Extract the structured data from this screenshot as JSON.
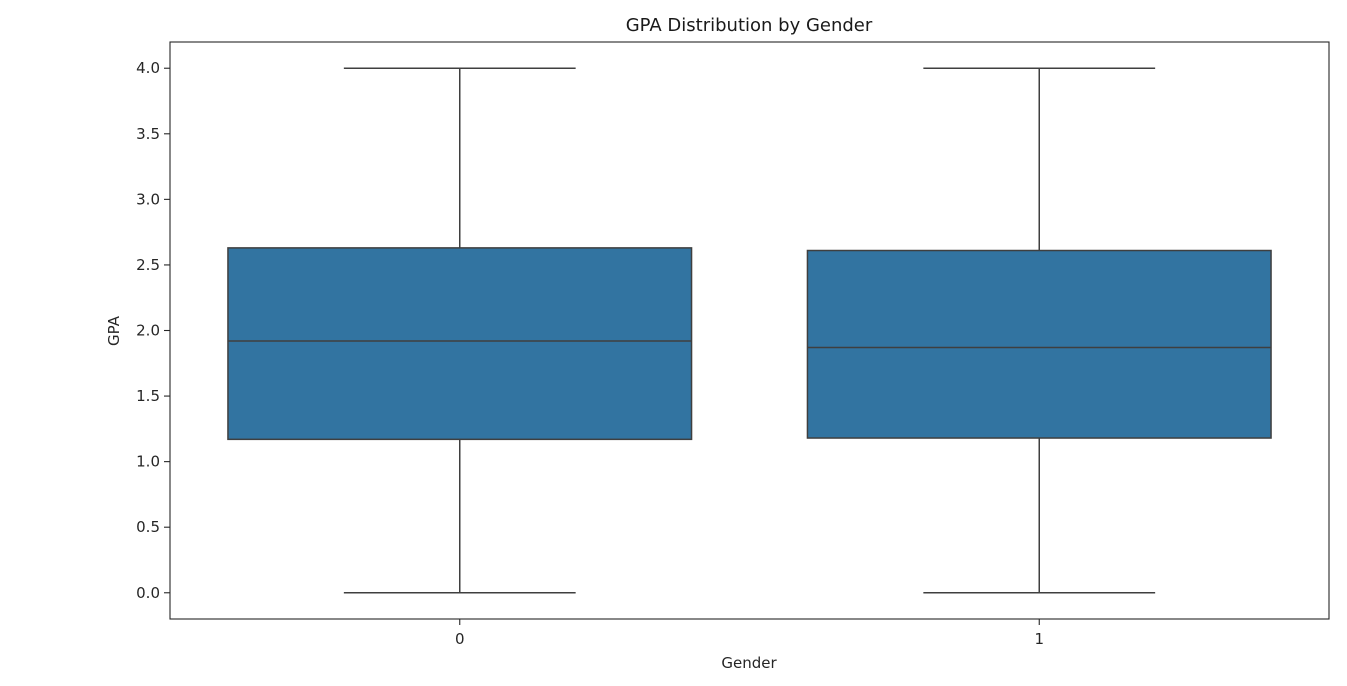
{
  "chart_data": {
    "type": "boxplot",
    "title": "GPA Distribution by Gender",
    "xlabel": "Gender",
    "ylabel": "GPA",
    "categories": [
      "0",
      "1"
    ],
    "ylim": [
      -0.2,
      4.2
    ],
    "yticks": [
      "0.0",
      "0.5",
      "1.0",
      "1.5",
      "2.0",
      "2.5",
      "3.0",
      "3.5",
      "4.0"
    ],
    "grid": false,
    "legend": "none",
    "box_color": "#3274a1",
    "line_color": "#3f3f3f",
    "boxes": [
      {
        "category": "0",
        "whisker_low": 0.0,
        "q1": 1.17,
        "median": 1.92,
        "q3": 2.63,
        "whisker_high": 4.0
      },
      {
        "category": "1",
        "whisker_low": 0.0,
        "q1": 1.18,
        "median": 1.87,
        "q3": 2.61,
        "whisker_high": 4.0
      }
    ]
  }
}
